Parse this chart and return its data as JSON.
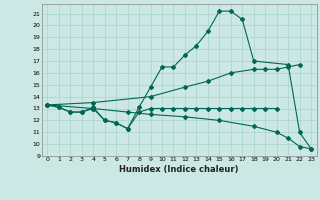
{
  "xlabel": "Humidex (Indice chaleur)",
  "xlim": [
    -0.5,
    23.5
  ],
  "ylim": [
    9,
    21.8
  ],
  "ytick_min": 9,
  "ytick_max": 21,
  "xticks": [
    0,
    1,
    2,
    3,
    4,
    5,
    6,
    7,
    8,
    9,
    10,
    11,
    12,
    13,
    14,
    15,
    16,
    17,
    18,
    19,
    20,
    21,
    22,
    23
  ],
  "bg_color": "#cce8e4",
  "grid_color": "#a8d4cc",
  "line_color": "#006655",
  "lines": [
    {
      "x": [
        0,
        1,
        2,
        3,
        4,
        5,
        6,
        7,
        8,
        9,
        10,
        11,
        12,
        13,
        14,
        15,
        16,
        17,
        18,
        21,
        22,
        23
      ],
      "y": [
        13.3,
        13.1,
        12.7,
        12.7,
        13.1,
        12.0,
        11.8,
        11.3,
        13.1,
        14.8,
        16.5,
        16.5,
        17.5,
        18.3,
        19.5,
        21.2,
        21.2,
        20.5,
        17.0,
        16.7,
        11.0,
        9.6
      ]
    },
    {
      "x": [
        0,
        4,
        9,
        12,
        14,
        16,
        18,
        19,
        20,
        21,
        22
      ],
      "y": [
        13.3,
        13.5,
        14.0,
        14.8,
        15.3,
        16.0,
        16.3,
        16.3,
        16.3,
        16.5,
        16.7
      ]
    },
    {
      "x": [
        0,
        4,
        7,
        9,
        12,
        15,
        18,
        20,
        21,
        22,
        23
      ],
      "y": [
        13.3,
        13.0,
        12.7,
        12.5,
        12.3,
        12.0,
        11.5,
        11.0,
        10.5,
        9.8,
        9.6
      ]
    },
    {
      "x": [
        0,
        1,
        2,
        3,
        4,
        5,
        6,
        7,
        8,
        9,
        10,
        11,
        12,
        13,
        14,
        15,
        16,
        17,
        18,
        19,
        20
      ],
      "y": [
        13.3,
        13.1,
        12.7,
        12.7,
        13.0,
        12.0,
        11.8,
        11.3,
        12.7,
        13.0,
        13.0,
        13.0,
        13.0,
        13.0,
        13.0,
        13.0,
        13.0,
        13.0,
        13.0,
        13.0,
        13.0
      ]
    }
  ]
}
